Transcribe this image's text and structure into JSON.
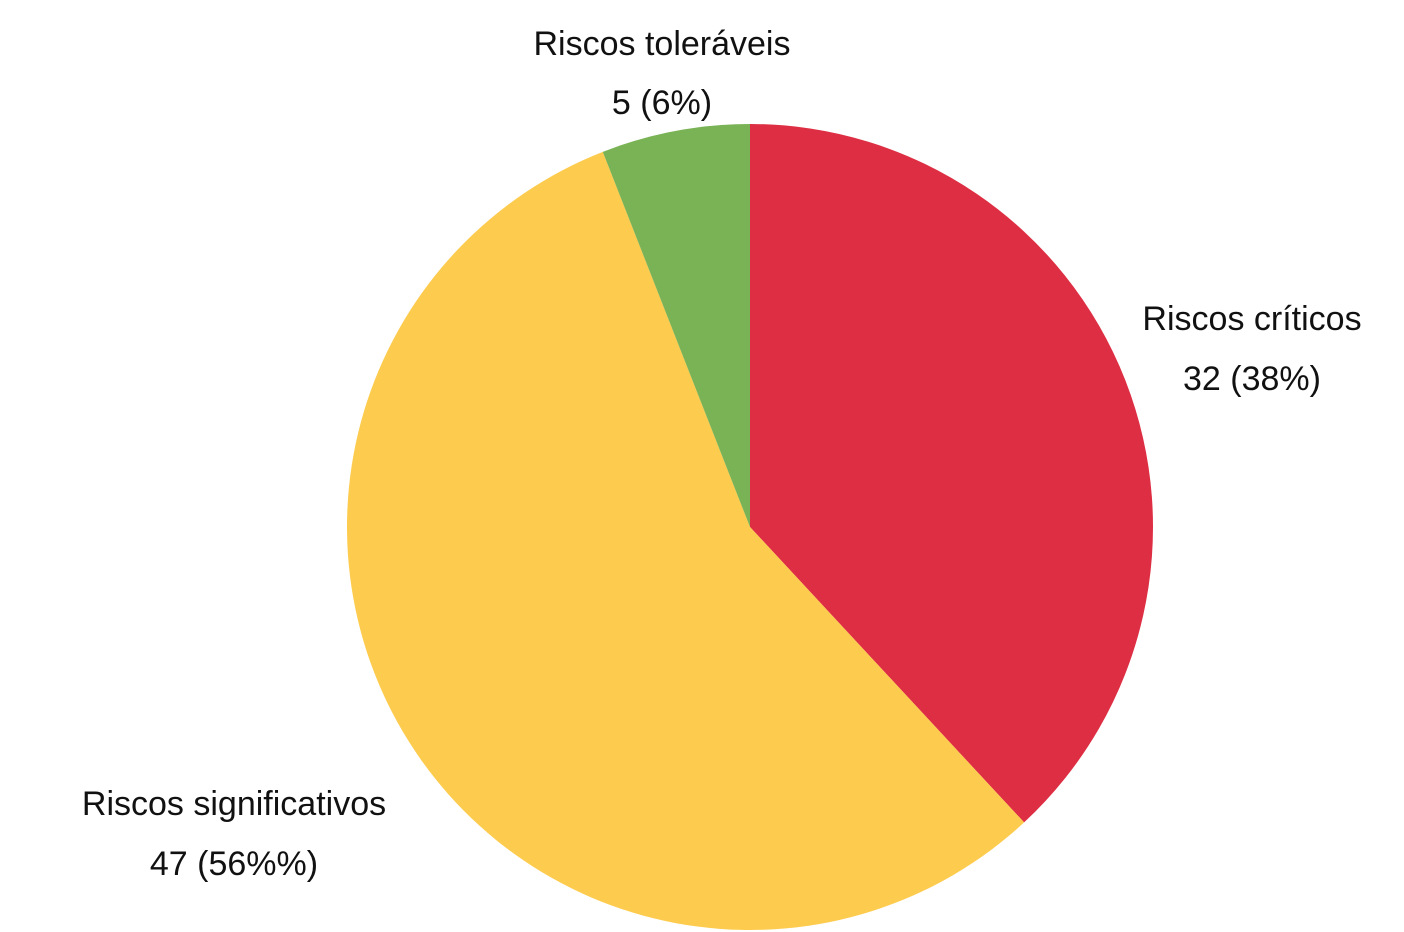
{
  "chart_data": {
    "type": "pie",
    "title": "",
    "start_angle_deg": 0,
    "direction": "clockwise",
    "slices": [
      {
        "name": "Riscos críticos",
        "value": 32,
        "value_label": "32 (38%)",
        "color": "#DE2E43"
      },
      {
        "name": "Riscos significativos",
        "value": 47,
        "value_label": "47 (56%%)",
        "color": "#FDCB4D"
      },
      {
        "name": "Riscos toleráveis",
        "value": 5,
        "value_label": "5 (6%)",
        "color": "#7AB356"
      }
    ]
  }
}
